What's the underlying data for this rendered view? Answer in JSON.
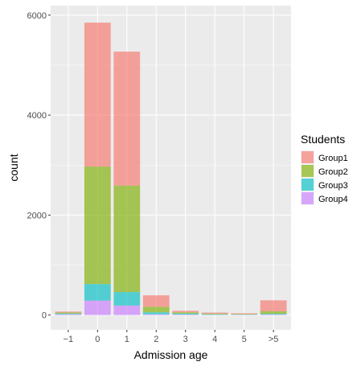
{
  "chart_data": {
    "type": "bar",
    "stacked": true,
    "categories": [
      "−1",
      "0",
      "1",
      "2",
      "3",
      "4",
      "5",
      ">5"
    ],
    "series": [
      {
        "name": "Group1",
        "color": "#F8766D",
        "values": [
          20,
          2880,
          2680,
          230,
          30,
          20,
          15,
          220
        ]
      },
      {
        "name": "Group2",
        "color": "#7CAE00",
        "values": [
          20,
          2350,
          2130,
          110,
          25,
          15,
          10,
          50
        ]
      },
      {
        "name": "Group3",
        "color": "#00BFC4",
        "values": [
          15,
          330,
          270,
          40,
          20,
          10,
          5,
          15
        ]
      },
      {
        "name": "Group4",
        "color": "#C77CFF",
        "values": [
          15,
          290,
          190,
          15,
          10,
          5,
          5,
          10
        ]
      }
    ],
    "xlabel": "Admission age",
    "ylabel": "count",
    "yticks": [
      0,
      2000,
      4000,
      6000
    ],
    "ylim": [
      -295,
      6190
    ],
    "grid": true,
    "legend": {
      "title": "Students",
      "position": "right"
    },
    "panel_background": "#EBEBEB",
    "bar_opacity": 0.65
  }
}
